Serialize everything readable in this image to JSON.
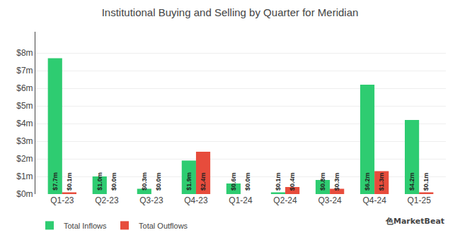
{
  "chart_data": {
    "type": "bar",
    "title": "Institutional Buying and Selling by Quarter for Meridian",
    "categories": [
      "Q1-23",
      "Q2-23",
      "Q3-23",
      "Q4-23",
      "Q1-24",
      "Q2-24",
      "Q3-24",
      "Q4-24",
      "Q1-25"
    ],
    "series": [
      {
        "name": "Total Inflows",
        "color": "#2ecc71",
        "values": [
          7.7,
          1.0,
          0.3,
          1.9,
          0.6,
          0.1,
          0.8,
          6.2,
          4.2
        ],
        "value_labels": [
          "$7.7m",
          "$1.0m",
          "$0.3m",
          "$1.9m",
          "$0.6m",
          "$0.1m",
          "$0.8m",
          "$6.2m",
          "$4.2m"
        ]
      },
      {
        "name": "Total Outflows",
        "color": "#e74c3c",
        "values": [
          0.1,
          0.0,
          0.0,
          2.4,
          0.0,
          0.4,
          0.3,
          1.3,
          0.1
        ],
        "value_labels": [
          "$0.1m",
          "$0.0m",
          "$0.0m",
          "$2.4m",
          "$0.0m",
          "$0.4m",
          "$0.3m",
          "$1.3m",
          "$0.1m"
        ]
      }
    ],
    "ylim": [
      0,
      9.2
    ],
    "yticks": [
      {
        "value": 0,
        "label": "$0m"
      },
      {
        "value": 1,
        "label": "$1m"
      },
      {
        "value": 2,
        "label": "$2m"
      },
      {
        "value": 3,
        "label": "$3m"
      },
      {
        "value": 4,
        "label": "$4m"
      },
      {
        "value": 5,
        "label": "$5m"
      },
      {
        "value": 6,
        "label": "$6m"
      },
      {
        "value": 7,
        "label": "$7m"
      },
      {
        "value": 8,
        "label": "$8m"
      }
    ],
    "grid": true,
    "legend": "lower left",
    "data_labels": true,
    "annotations": [
      "⾊MarketBeat"
    ]
  }
}
